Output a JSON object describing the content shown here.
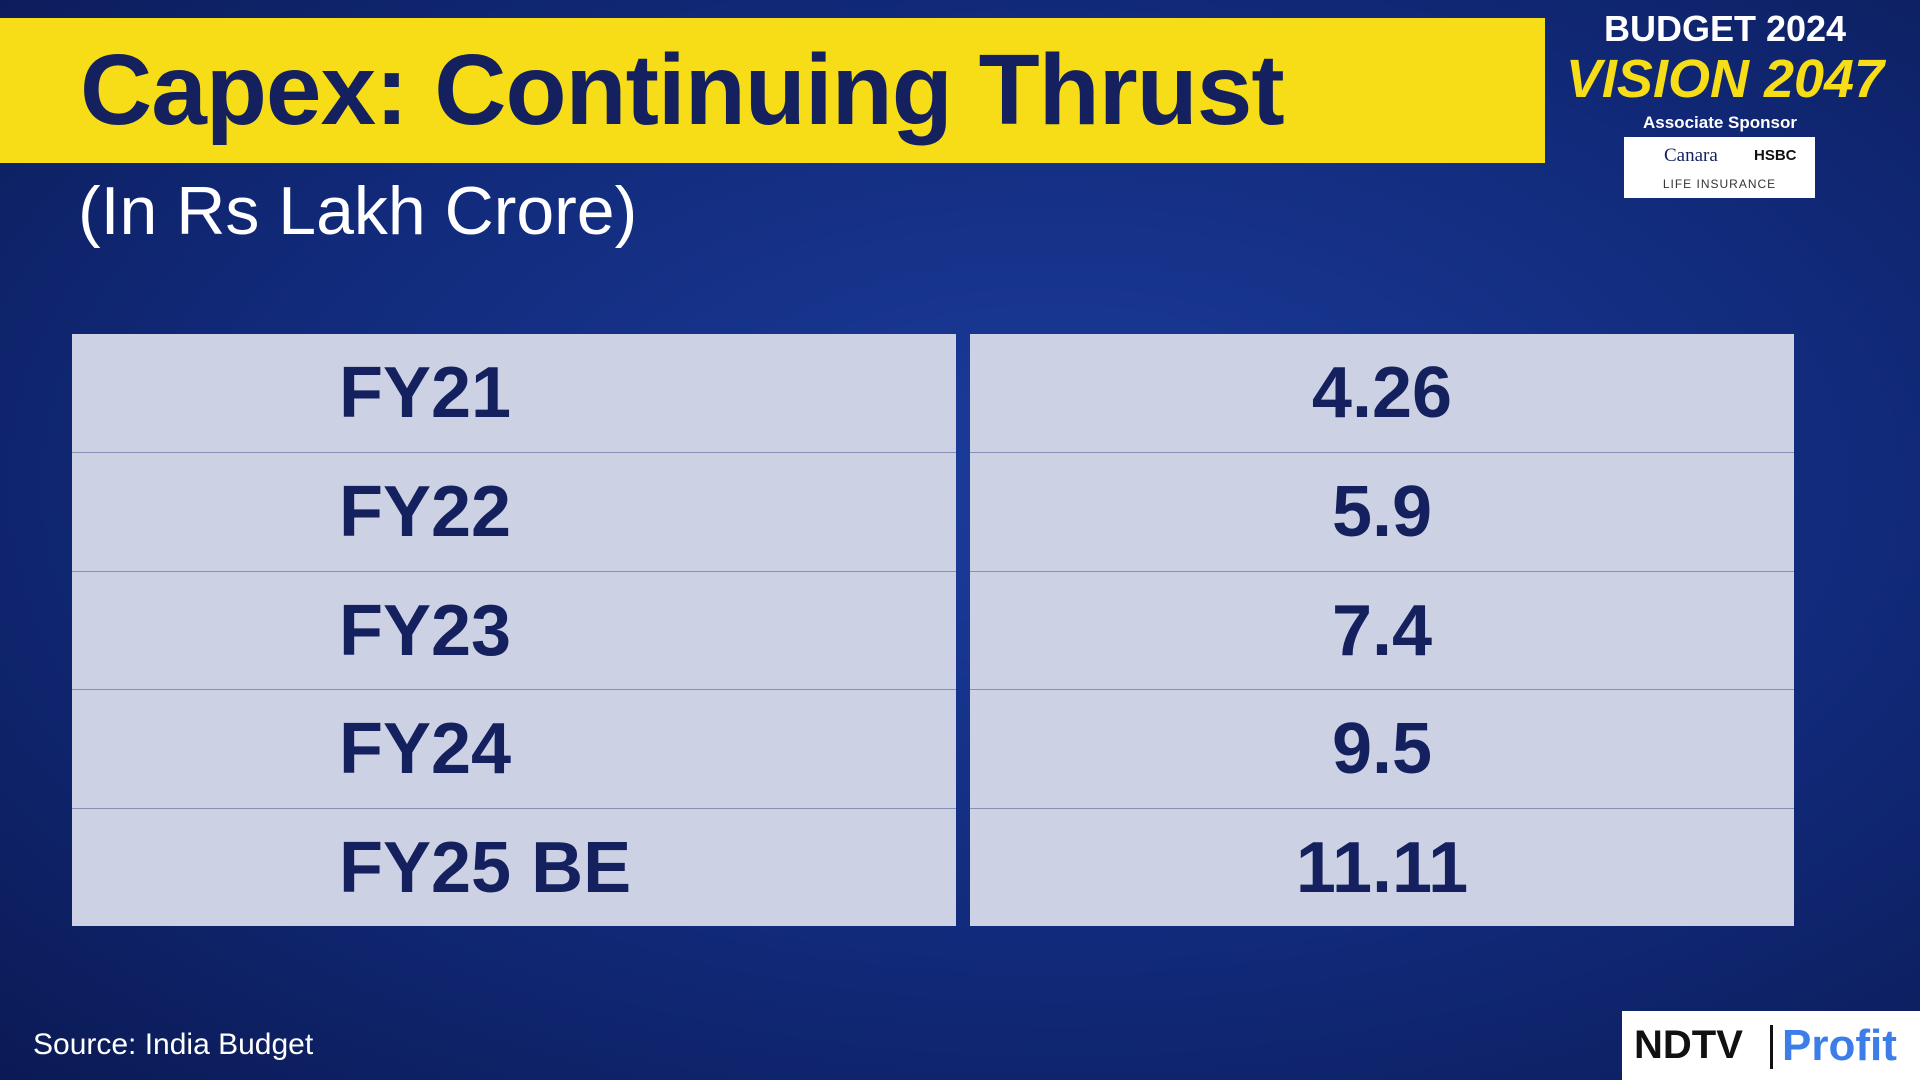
{
  "header": {
    "title": "Capex: Continuing Thrust",
    "subtitle": "(In Rs Lakh Crore)"
  },
  "branding": {
    "line1": "BUDGET 2024",
    "line2": "VISION 2047",
    "sponsor_label": "Associate Sponsor",
    "sponsor_name1": "Canara",
    "sponsor_name2": "HSBC",
    "sponsor_tag": "LIFE INSURANCE"
  },
  "table": {
    "rows": [
      [
        "FY21",
        "4.26"
      ],
      [
        "FY22",
        "5.9"
      ],
      [
        "FY23",
        "7.4"
      ],
      [
        "FY24",
        "9.5"
      ],
      [
        "FY25 BE",
        "11.11"
      ]
    ]
  },
  "footer": {
    "source": "Source: India Budget",
    "logo1": "NDTV",
    "logo2": "Profit"
  }
}
